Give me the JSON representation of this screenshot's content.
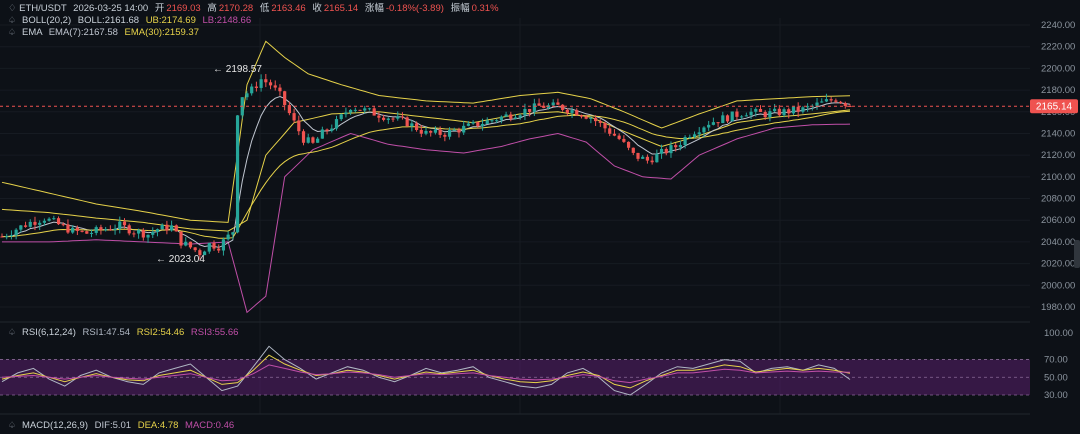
{
  "header": {
    "symbol": "ETH/USDT",
    "datetime": "2026-03-25 14:00",
    "open_label": "开",
    "open": "2169.03",
    "high_label": "高",
    "high": "2170.28",
    "low_label": "低",
    "low": "2163.46",
    "close_label": "收",
    "close": "2165.14",
    "change_label": "涨幅",
    "change": "-0.18%(-3.89)",
    "amp_label": "振幅",
    "amp": "0.31%"
  },
  "indicators": {
    "boll": {
      "label": "BOLL(20,2)",
      "boll": "BOLL:2161.68",
      "ub": "UB:2174.69",
      "lb": "LB:2148.66"
    },
    "ema": {
      "label": "EMA",
      "ema7": "EMA(7):2167.58",
      "ema30": "EMA(30):2159.37"
    },
    "rsi": {
      "label": "RSI(6,12,24)",
      "rsi1": "RSI1:47.54",
      "rsi2": "RSI2:54.46",
      "rsi3": "RSI3:55.66"
    },
    "macd": {
      "label": "MACD(12,26,9)",
      "dif": "DIF:5.01",
      "dea": "DEA:4.78",
      "macd": "MACD:0.46"
    }
  },
  "colors": {
    "up": "#26a69a",
    "down": "#ef5350",
    "ub": "#e6d24a",
    "mid": "#e6d24a",
    "lb": "#c04fa8",
    "ema7": "#c0c6d0",
    "ema30": "#e6d24a",
    "rsi1": "#b0b8c4",
    "rsi2": "#e6d24a",
    "rsi3": "#c04fa8",
    "price_line": "#ef5350",
    "rsi_band": "#5a1f6b"
  },
  "chart_data": [
    {
      "type": "candlestick",
      "y_ticks": [
        "2240.00",
        "2220.00",
        "2200.00",
        "2180.00",
        "2160.00",
        "2140.00",
        "2120.00",
        "2100.00",
        "2080.00",
        "2060.00",
        "2040.00",
        "2020.00",
        "2000.00",
        "1980.00"
      ],
      "ylim": [
        1970,
        2250
      ],
      "last_price": "2165.14",
      "high_marker": "2198.57",
      "low_marker": "2023.04",
      "close_path": [
        [
          0,
          2045
        ],
        [
          3,
          2052
        ],
        [
          6,
          2058
        ],
        [
          9,
          2062
        ],
        [
          12,
          2056
        ],
        [
          15,
          2050
        ],
        [
          18,
          2048
        ],
        [
          22,
          2052
        ],
        [
          25,
          2055
        ],
        [
          28,
          2050
        ],
        [
          31,
          2047
        ],
        [
          33,
          2052
        ],
        [
          36,
          2054
        ],
        [
          38,
          2040
        ],
        [
          40,
          2035
        ],
        [
          42,
          2030
        ],
        [
          44,
          2038
        ],
        [
          46,
          2036
        ],
        [
          48,
          2045
        ],
        [
          49,
          2050
        ],
        [
          50,
          2160
        ],
        [
          51,
          2175
        ],
        [
          53,
          2180
        ],
        [
          55,
          2190
        ],
        [
          57,
          2185
        ],
        [
          59,
          2175
        ],
        [
          62,
          2150
        ],
        [
          64,
          2135
        ],
        [
          66,
          2130
        ],
        [
          68,
          2140
        ],
        [
          71,
          2150
        ],
        [
          74,
          2165
        ],
        [
          78,
          2160
        ],
        [
          82,
          2155
        ],
        [
          86,
          2150
        ],
        [
          90,
          2140
        ],
        [
          94,
          2140
        ],
        [
          98,
          2145
        ],
        [
          102,
          2150
        ],
        [
          106,
          2155
        ],
        [
          110,
          2160
        ],
        [
          114,
          2165
        ],
        [
          118,
          2165
        ],
        [
          122,
          2160
        ],
        [
          125,
          2155
        ],
        [
          128,
          2145
        ],
        [
          131,
          2135
        ],
        [
          134,
          2120
        ],
        [
          137,
          2115
        ],
        [
          140,
          2122
        ],
        [
          143,
          2128
        ],
        [
          146,
          2140
        ],
        [
          150,
          2150
        ],
        [
          154,
          2155
        ],
        [
          158,
          2160
        ],
        [
          162,
          2158
        ],
        [
          166,
          2160
        ],
        [
          170,
          2162
        ],
        [
          174,
          2168
        ],
        [
          177,
          2172
        ],
        [
          179,
          2168
        ],
        [
          180,
          2165.14
        ]
      ],
      "band_ub": [
        [
          0,
          2095
        ],
        [
          10,
          2085
        ],
        [
          20,
          2075
        ],
        [
          30,
          2068
        ],
        [
          40,
          2060
        ],
        [
          48,
          2058
        ],
        [
          52,
          2185
        ],
        [
          56,
          2225
        ],
        [
          60,
          2210
        ],
        [
          65,
          2195
        ],
        [
          72,
          2185
        ],
        [
          80,
          2175
        ],
        [
          90,
          2170
        ],
        [
          100,
          2168
        ],
        [
          110,
          2175
        ],
        [
          118,
          2178
        ],
        [
          125,
          2172
        ],
        [
          132,
          2160
        ],
        [
          140,
          2145
        ],
        [
          148,
          2158
        ],
        [
          156,
          2170
        ],
        [
          164,
          2172
        ],
        [
          172,
          2174
        ],
        [
          180,
          2174.69
        ]
      ],
      "band_mid": [
        [
          0,
          2070
        ],
        [
          10,
          2067
        ],
        [
          20,
          2062
        ],
        [
          30,
          2058
        ],
        [
          40,
          2052
        ],
        [
          48,
          2050
        ],
        [
          52,
          2060
        ],
        [
          56,
          2120
        ],
        [
          62,
          2150
        ],
        [
          70,
          2158
        ],
        [
          80,
          2160
        ],
        [
          90,
          2155
        ],
        [
          100,
          2150
        ],
        [
          110,
          2158
        ],
        [
          118,
          2160
        ],
        [
          125,
          2155
        ],
        [
          132,
          2142
        ],
        [
          140,
          2128
        ],
        [
          148,
          2138
        ],
        [
          156,
          2150
        ],
        [
          164,
          2155
        ],
        [
          172,
          2158
        ],
        [
          180,
          2161.68
        ]
      ],
      "band_lb": [
        [
          0,
          2040
        ],
        [
          10,
          2040
        ],
        [
          20,
          2042
        ],
        [
          30,
          2040
        ],
        [
          40,
          2038
        ],
        [
          48,
          2040
        ],
        [
          52,
          1975
        ],
        [
          56,
          1990
        ],
        [
          60,
          2100
        ],
        [
          66,
          2125
        ],
        [
          74,
          2140
        ],
        [
          82,
          2130
        ],
        [
          90,
          2125
        ],
        [
          98,
          2122
        ],
        [
          106,
          2128
        ],
        [
          112,
          2135
        ],
        [
          118,
          2140
        ],
        [
          124,
          2132
        ],
        [
          130,
          2110
        ],
        [
          136,
          2100
        ],
        [
          142,
          2098
        ],
        [
          148,
          2120
        ],
        [
          156,
          2135
        ],
        [
          164,
          2145
        ],
        [
          172,
          2148
        ],
        [
          180,
          2148.66
        ]
      ]
    },
    {
      "type": "line",
      "name": "RSI(6,12,24)",
      "y_ticks": [
        "100.00",
        "70.00",
        "50.00",
        "30.00"
      ],
      "ylim": [
        20,
        105
      ],
      "band": [
        30,
        70
      ],
      "series": [
        {
          "name": "RSI1",
          "values": [
            45,
            55,
            60,
            48,
            40,
            52,
            58,
            50,
            45,
            42,
            55,
            60,
            65,
            50,
            35,
            40,
            62,
            85,
            70,
            60,
            48,
            55,
            62,
            58,
            50,
            45,
            52,
            60,
            55,
            58,
            62,
            50,
            45,
            40,
            38,
            42,
            55,
            60,
            50,
            35,
            30,
            42,
            55,
            62,
            60,
            65,
            70,
            68,
            55,
            60,
            62,
            58,
            64,
            60,
            47.54
          ]
        },
        {
          "name": "RSI2",
          "values": [
            48,
            52,
            55,
            50,
            45,
            50,
            54,
            50,
            47,
            46,
            52,
            55,
            58,
            50,
            42,
            44,
            58,
            75,
            65,
            58,
            52,
            54,
            58,
            56,
            52,
            48,
            52,
            56,
            54,
            56,
            58,
            52,
            48,
            45,
            44,
            46,
            52,
            56,
            52,
            42,
            38,
            46,
            52,
            58,
            58,
            60,
            64,
            62,
            56,
            58,
            60,
            58,
            60,
            58,
            54.46
          ]
        },
        {
          "name": "RSI3",
          "values": [
            50,
            51,
            52,
            50,
            48,
            50,
            52,
            50,
            49,
            48,
            50,
            52,
            54,
            50,
            46,
            47,
            54,
            64,
            60,
            56,
            53,
            54,
            56,
            55,
            53,
            50,
            52,
            54,
            53,
            54,
            55,
            52,
            50,
            48,
            47,
            48,
            50,
            53,
            51,
            46,
            44,
            48,
            51,
            55,
            55,
            57,
            59,
            58,
            55,
            56,
            57,
            56,
            57,
            56,
            55.66
          ]
        }
      ]
    }
  ]
}
